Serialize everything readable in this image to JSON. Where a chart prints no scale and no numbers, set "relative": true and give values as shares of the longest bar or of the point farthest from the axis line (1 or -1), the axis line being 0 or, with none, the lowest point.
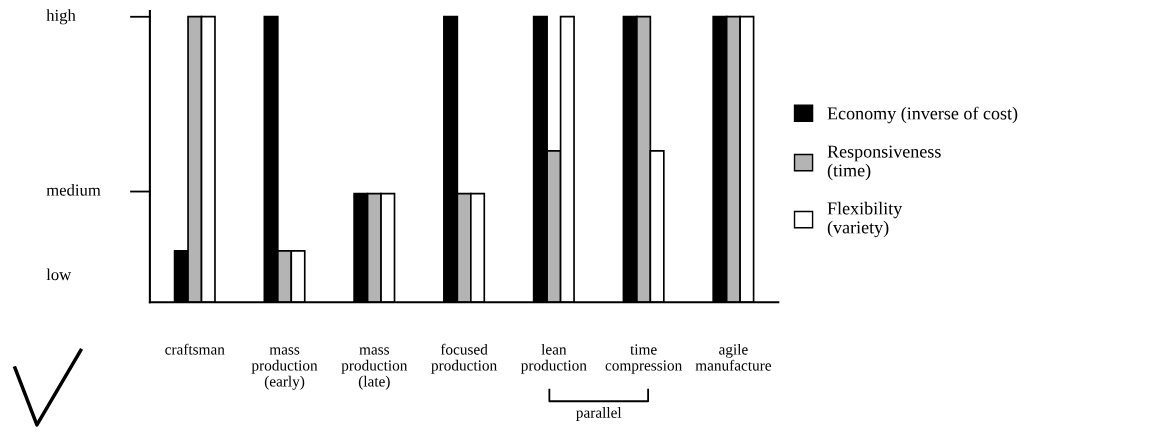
{
  "chart_data": {
    "type": "bar",
    "relative": true,
    "categories": [
      "craftsman",
      "mass\nproduction\n(early)",
      "mass\nproduction\n(late)",
      "focused\nproduction",
      "lean\nproduction",
      "time\ncompression",
      "agile\nmanufacture"
    ],
    "series": [
      {
        "name": "Economy (inverse of cost)",
        "color": "#000000",
        "values": [
          0.18,
          1,
          0.38,
          1,
          1,
          1,
          1
        ]
      },
      {
        "name": "Responsiveness\n(time)",
        "color": "#b4b4b4",
        "values": [
          1,
          0.18,
          0.38,
          0.38,
          0.53,
          1,
          1
        ]
      },
      {
        "name": "Flexibility\n(variety)",
        "color": "#ffffff",
        "values": [
          1,
          0.18,
          0.38,
          0.38,
          1,
          0.53,
          1
        ]
      }
    ],
    "legend": "right",
    "grid": false,
    "annotations": [
      "low",
      "medium",
      "high",
      "parallel"
    ]
  }
}
